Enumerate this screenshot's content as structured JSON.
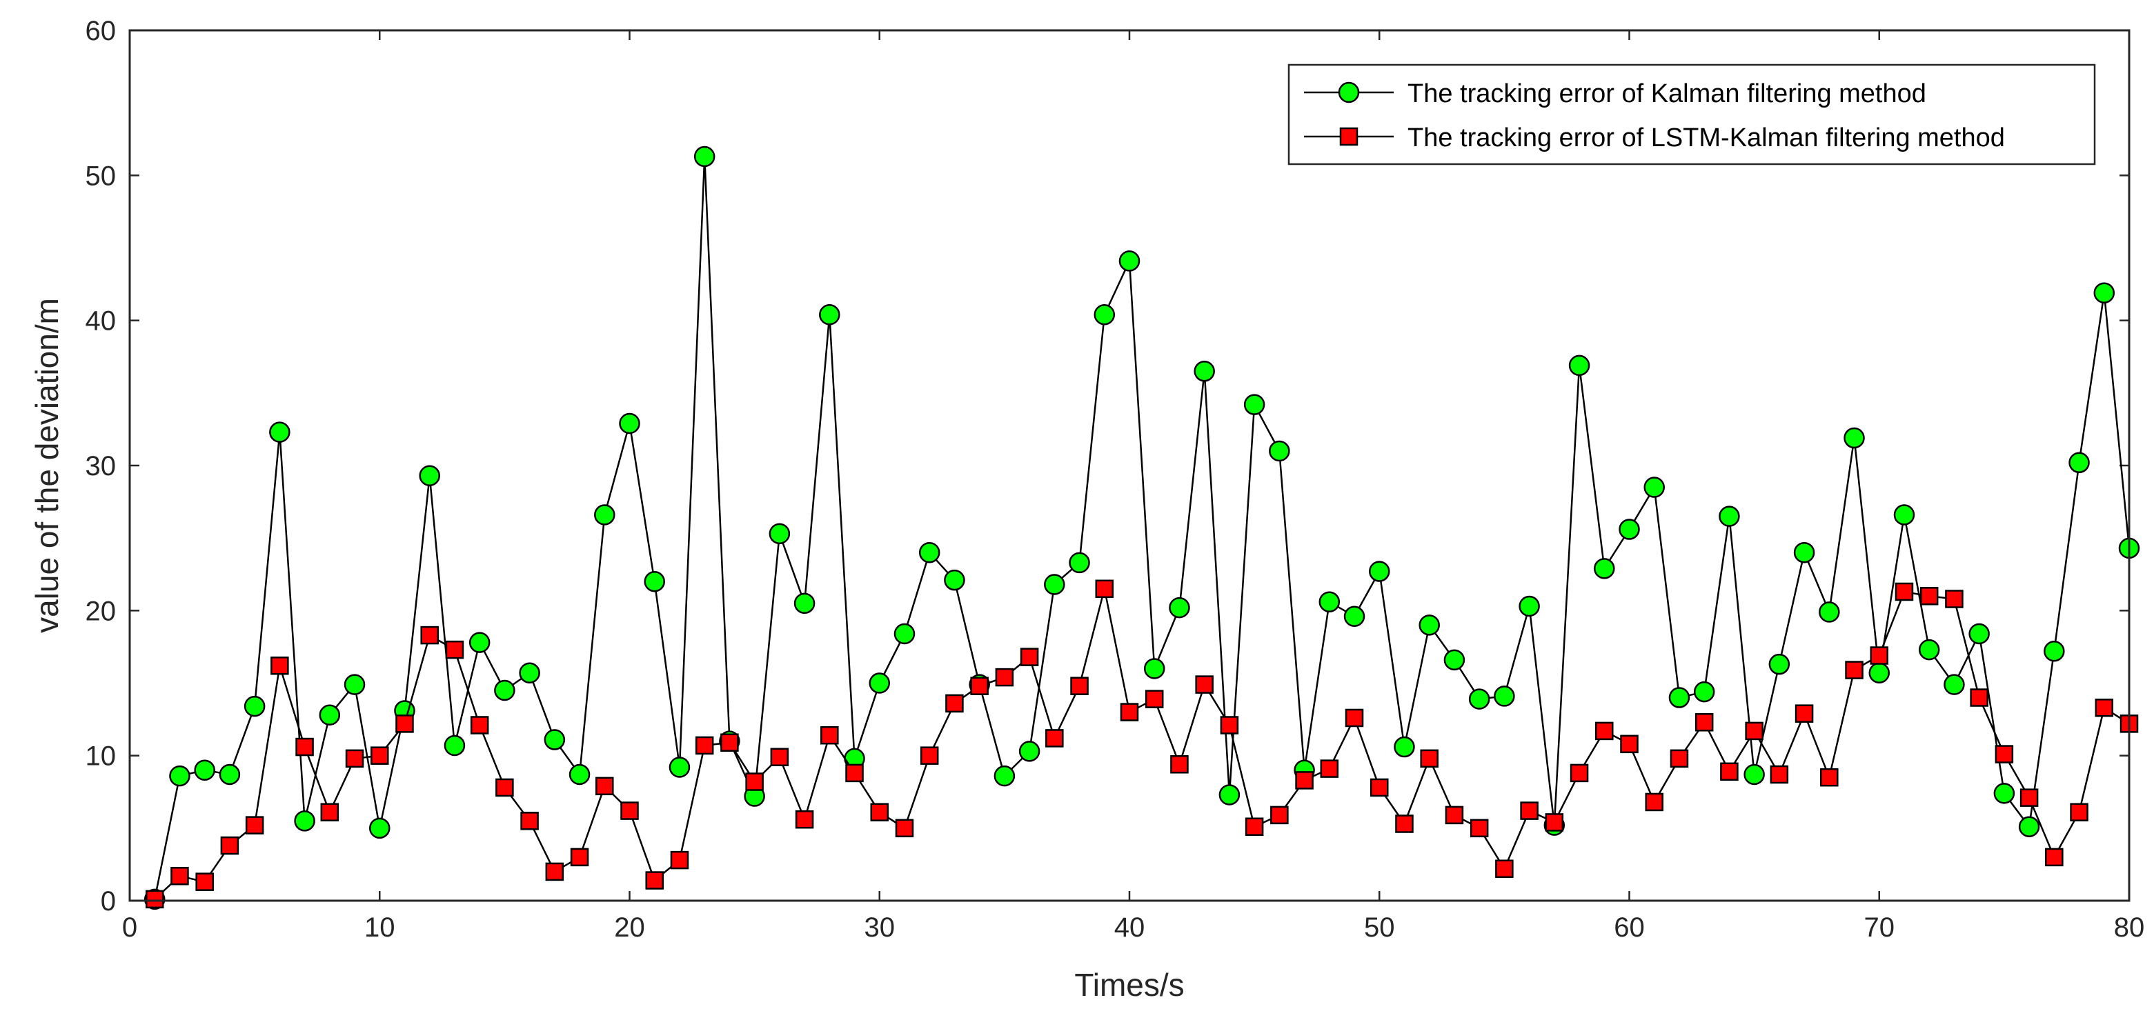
{
  "chart_data": {
    "type": "line",
    "xlabel": "Times/s",
    "ylabel": "value of the deviation/m",
    "xlim": [
      0,
      80
    ],
    "ylim": [
      0,
      60
    ],
    "xticks": [
      0,
      10,
      20,
      30,
      40,
      50,
      60,
      70,
      80
    ],
    "yticks": [
      0,
      10,
      20,
      30,
      40,
      50,
      60
    ],
    "grid": false,
    "legend_position": "top-right",
    "x": [
      1,
      2,
      3,
      4,
      5,
      6,
      7,
      8,
      9,
      10,
      11,
      12,
      13,
      14,
      15,
      16,
      17,
      18,
      19,
      20,
      21,
      22,
      23,
      24,
      25,
      26,
      27,
      28,
      29,
      30,
      31,
      32,
      33,
      34,
      35,
      36,
      37,
      38,
      39,
      40,
      41,
      42,
      43,
      44,
      45,
      46,
      47,
      48,
      49,
      50,
      51,
      52,
      53,
      54,
      55,
      56,
      57,
      58,
      59,
      60,
      61,
      62,
      63,
      64,
      65,
      66,
      67,
      68,
      69,
      70,
      71,
      72,
      73,
      74,
      75,
      76,
      77,
      78,
      79,
      80
    ],
    "series": [
      {
        "name": "The tracking error of Kalman filtering method",
        "marker": "circle",
        "color": "#00ff00",
        "values": [
          0.1,
          8.6,
          9.0,
          8.7,
          13.4,
          32.3,
          5.5,
          12.8,
          14.9,
          5.0,
          13.1,
          29.3,
          10.7,
          17.8,
          14.5,
          15.7,
          11.1,
          8.7,
          26.6,
          32.9,
          22.0,
          9.2,
          51.3,
          11.0,
          7.2,
          25.3,
          20.5,
          40.4,
          9.8,
          15.0,
          18.4,
          24.0,
          22.1,
          14.9,
          8.6,
          10.3,
          21.8,
          23.3,
          40.4,
          44.1,
          16.0,
          20.2,
          36.5,
          7.3,
          34.2,
          31.0,
          9.0,
          20.6,
          19.6,
          22.7,
          10.6,
          19.0,
          16.6,
          13.9,
          14.1,
          20.3,
          5.2,
          36.9,
          22.9,
          25.6,
          28.5,
          14.0,
          14.4,
          26.5,
          8.7,
          16.3,
          24.0,
          19.9,
          31.9,
          15.7,
          26.6,
          17.3,
          14.9,
          18.4,
          7.4,
          5.1,
          17.2,
          30.2,
          41.9,
          24.3
        ]
      },
      {
        "name": "The tracking error of LSTM-Kalman filtering method",
        "marker": "square",
        "color": "#ff0000",
        "values": [
          0.1,
          1.7,
          1.3,
          3.8,
          5.2,
          16.2,
          10.6,
          6.1,
          9.8,
          10.0,
          12.2,
          18.3,
          17.3,
          12.1,
          7.8,
          5.5,
          2.0,
          3.0,
          7.9,
          6.2,
          1.4,
          2.8,
          10.7,
          10.9,
          8.2,
          9.9,
          5.6,
          11.4,
          8.8,
          6.1,
          5.0,
          10.0,
          13.6,
          14.8,
          15.4,
          16.8,
          11.2,
          14.8,
          21.5,
          13.0,
          13.9,
          9.4,
          14.9,
          12.1,
          5.1,
          5.9,
          8.3,
          9.1,
          12.6,
          7.8,
          5.3,
          9.8,
          5.9,
          5.0,
          2.2,
          6.2,
          5.4,
          8.8,
          11.7,
          10.8,
          6.8,
          9.8,
          12.3,
          8.9,
          11.7,
          8.7,
          12.9,
          8.5,
          15.9,
          16.9,
          21.3,
          21.0,
          20.8,
          14.0,
          10.1,
          7.1,
          3.0,
          6.1,
          13.3,
          12.2
        ]
      }
    ]
  }
}
